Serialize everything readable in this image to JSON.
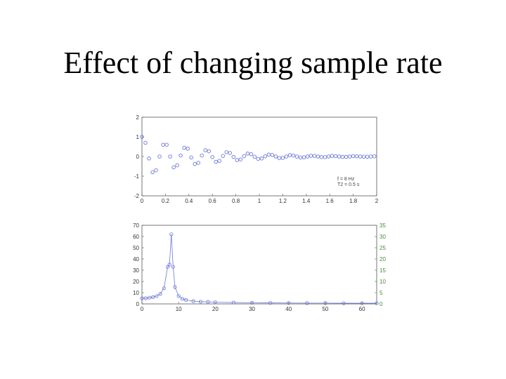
{
  "slide": {
    "title": "Effect of changing sample rate"
  },
  "colors": {
    "series": "#6a78d8",
    "axis": "#555555",
    "right_axis": "#4a8a3a"
  },
  "chart_data": [
    {
      "type": "scatter",
      "description_of_series": "damped sinusoid samples (markers)",
      "x": [
        0,
        0.03,
        0.06,
        0.09,
        0.12,
        0.15,
        0.18,
        0.21,
        0.24,
        0.27,
        0.3,
        0.33,
        0.36,
        0.39,
        0.42,
        0.45,
        0.48,
        0.51,
        0.54,
        0.57,
        0.6,
        0.63,
        0.66,
        0.69,
        0.72,
        0.75,
        0.78,
        0.81,
        0.84,
        0.87,
        0.9,
        0.93,
        0.96,
        0.99,
        1.02,
        1.05,
        1.08,
        1.11,
        1.14,
        1.17,
        1.2,
        1.23,
        1.26,
        1.29,
        1.32,
        1.35,
        1.38,
        1.41,
        1.44,
        1.47,
        1.5,
        1.53,
        1.56,
        1.59,
        1.62,
        1.65,
        1.68,
        1.71,
        1.74,
        1.77,
        1.8,
        1.83,
        1.86,
        1.89,
        1.92,
        1.95,
        1.98
      ],
      "y": [
        1.0,
        0.7,
        -0.1,
        -0.8,
        -0.7,
        0.0,
        0.6,
        0.6,
        0.0,
        -0.55,
        -0.45,
        0.05,
        0.45,
        0.4,
        -0.05,
        -0.38,
        -0.32,
        0.05,
        0.32,
        0.27,
        -0.03,
        -0.27,
        -0.22,
        0.03,
        0.22,
        0.18,
        -0.02,
        -0.18,
        -0.15,
        0.02,
        0.15,
        0.12,
        -0.01,
        -0.12,
        -0.1,
        0.01,
        0.1,
        0.08,
        0.0,
        -0.08,
        -0.07,
        0.0,
        0.07,
        0.05,
        0.0,
        -0.05,
        -0.04,
        0.0,
        0.04,
        0.03,
        0.0,
        -0.03,
        -0.03,
        0.0,
        0.03,
        0.02,
        0.0,
        -0.02,
        -0.02,
        0.0,
        0.02,
        0.01,
        0.0,
        -0.01,
        -0.01,
        0.0,
        0.01
      ],
      "xlim": [
        0,
        2
      ],
      "ylim": [
        -2,
        2
      ],
      "xticks": [
        "0",
        "0.2",
        "0.4",
        "0.6",
        "0.8",
        "1",
        "1.2",
        "1.4",
        "1.6",
        "1.8",
        "2"
      ],
      "yticks": [
        "2",
        "1",
        "0",
        "-1",
        "-2"
      ],
      "legend": [
        "f = 8 Hz",
        "T2 = 0.5 s"
      ],
      "legend_position": "bottom-right",
      "grid": false
    },
    {
      "type": "line",
      "description_of_series": "magnitude spectrum with circle markers",
      "x": [
        0,
        1,
        2,
        3,
        4,
        5,
        6,
        7,
        7.5,
        8,
        8.5,
        9,
        10,
        11,
        12,
        14,
        16,
        18,
        20,
        25,
        30,
        35,
        40,
        45,
        50,
        55,
        60,
        64
      ],
      "y": [
        5,
        5,
        5.5,
        6,
        7,
        9,
        14,
        33,
        35,
        62,
        33,
        15,
        7,
        4.5,
        3.5,
        2.5,
        2,
        1.8,
        1.5,
        1.2,
        1,
        0.9,
        0.8,
        0.7,
        0.7,
        0.6,
        0.6,
        0.6
      ],
      "xlim": [
        0,
        64
      ],
      "ylim": [
        0,
        70
      ],
      "xticks": [
        "0",
        "10",
        "20",
        "30",
        "40",
        "50",
        "60"
      ],
      "yticks": [
        "70",
        "60",
        "50",
        "40",
        "30",
        "20",
        "10",
        "0"
      ],
      "yticks_right": [
        "35",
        "30",
        "25",
        "20",
        "15",
        "10",
        "5",
        "0"
      ],
      "grid": false
    }
  ]
}
